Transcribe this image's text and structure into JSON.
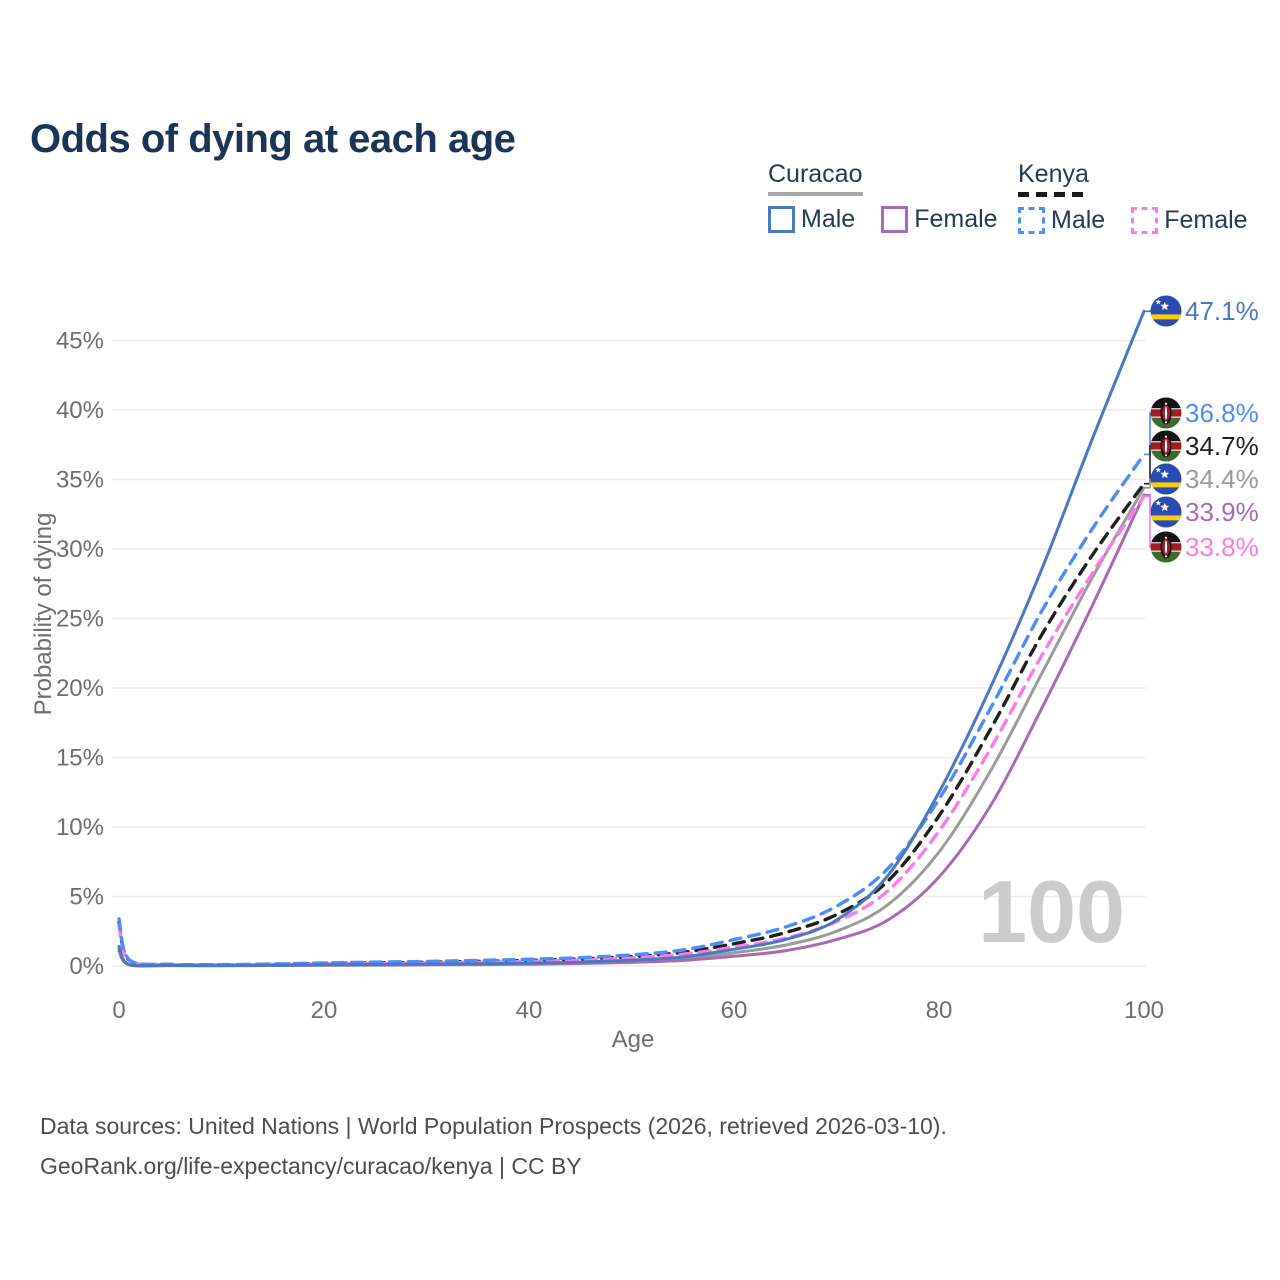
{
  "title": "Odds of dying at each age",
  "legend": {
    "groups": [
      {
        "label": "Curacao",
        "line_style": "solid",
        "underline_color": "#a8a8a8",
        "items": [
          {
            "label": "Male",
            "color": "#4b79c1",
            "style": "solid"
          },
          {
            "label": "Female",
            "color": "#a66bb4",
            "style": "solid"
          }
        ]
      },
      {
        "label": "Kenya",
        "line_style": "dashed",
        "underline_color": "#1a1a1a",
        "items": [
          {
            "label": "Male",
            "color": "#4d8df5",
            "style": "dashed"
          },
          {
            "label": "Female",
            "color": "#fb7ce8",
            "style": "dashed"
          }
        ]
      }
    ]
  },
  "chart_data": {
    "type": "line",
    "title": "Odds of dying at each age",
    "xlabel": "Age",
    "ylabel": "Probability of dying",
    "x_ticks": [
      0,
      20,
      40,
      60,
      80,
      100
    ],
    "y_ticks_percent": [
      0,
      5,
      10,
      15,
      20,
      25,
      30,
      35,
      40,
      45
    ],
    "xlim": [
      0,
      100
    ],
    "ylim_percent": [
      0,
      47.5
    ],
    "grid": "horizontal",
    "legend_position": "top-right",
    "watermark": "100",
    "ages": [
      0,
      1,
      5,
      10,
      15,
      20,
      25,
      30,
      35,
      40,
      45,
      50,
      55,
      60,
      65,
      70,
      75,
      80,
      85,
      90,
      95,
      100
    ],
    "series": [
      {
        "name": "Curacao Male",
        "country": "Curacao",
        "sex": "Male",
        "style": "solid",
        "color": "#4b79c1",
        "flag": "curacao",
        "end_label": "47.1%",
        "values": [
          1.4,
          0.1,
          0.04,
          0.03,
          0.05,
          0.09,
          0.11,
          0.13,
          0.16,
          0.21,
          0.28,
          0.42,
          0.65,
          1.2,
          1.9,
          3.3,
          6.5,
          12.5,
          20.0,
          28.5,
          38.0,
          47.1
        ]
      },
      {
        "name": "Kenya Male",
        "country": "Kenya",
        "sex": "Male",
        "style": "dashed",
        "color": "#4d8df5",
        "flag": "kenya",
        "end_label": "36.8%",
        "values": [
          3.4,
          0.45,
          0.12,
          0.1,
          0.14,
          0.22,
          0.28,
          0.33,
          0.4,
          0.48,
          0.6,
          0.8,
          1.15,
          1.9,
          2.8,
          4.3,
          7.0,
          12.0,
          18.5,
          25.5,
          31.5,
          36.8
        ]
      },
      {
        "name": "Kenya",
        "country": "Kenya",
        "sex": "Both",
        "style": "dashed",
        "color": "#1f1f1f",
        "flag": "kenya",
        "end_label": "34.7%",
        "values": [
          3.15,
          0.42,
          0.11,
          0.09,
          0.12,
          0.18,
          0.22,
          0.27,
          0.33,
          0.4,
          0.51,
          0.68,
          0.98,
          1.6,
          2.4,
          3.7,
          6.1,
          10.8,
          17.0,
          23.8,
          29.6,
          34.7
        ]
      },
      {
        "name": "Curacao",
        "country": "Curacao",
        "sex": "Both",
        "style": "solid",
        "color": "#9b9b9b",
        "flag": "curacao",
        "end_label": "34.4%",
        "values": [
          1.25,
          0.09,
          0.035,
          0.028,
          0.04,
          0.07,
          0.085,
          0.1,
          0.13,
          0.17,
          0.23,
          0.34,
          0.52,
          0.95,
          1.5,
          2.5,
          4.4,
          8.2,
          14.0,
          21.0,
          28.0,
          34.4
        ]
      },
      {
        "name": "Curacao Female",
        "country": "Curacao",
        "sex": "Female",
        "style": "solid",
        "color": "#a66bb4",
        "flag": "curacao",
        "end_label": "33.9%",
        "values": [
          1.1,
          0.08,
          0.03,
          0.025,
          0.035,
          0.05,
          0.06,
          0.08,
          0.1,
          0.13,
          0.18,
          0.26,
          0.4,
          0.7,
          1.1,
          1.9,
          3.3,
          6.4,
          11.5,
          18.5,
          26.0,
          33.9
        ]
      },
      {
        "name": "Kenya Female",
        "country": "Kenya",
        "sex": "Female",
        "style": "dashed",
        "color": "#fb7ce8",
        "flag": "kenya",
        "end_label": "33.8%",
        "values": [
          2.9,
          0.38,
          0.1,
          0.08,
          0.1,
          0.14,
          0.17,
          0.21,
          0.26,
          0.33,
          0.43,
          0.58,
          0.85,
          1.35,
          2.0,
          3.2,
          5.4,
          9.7,
          15.6,
          22.3,
          28.3,
          33.8
        ]
      }
    ]
  },
  "colors": {
    "title": "#1c3557",
    "axis_text": "#6e6e6e",
    "gridline": "#ececec",
    "watermark": "#cbcbcb",
    "footer_text": "#4d4d4d",
    "flag_curacao": {
      "field": "#2b4bb3",
      "stripe": "#f7ce0c",
      "stars": "#ffffff"
    },
    "flag_kenya": {
      "black": "#141414",
      "red": "#9e1f28",
      "green": "#3d6b2e",
      "white": "#ffffff"
    }
  },
  "footer": {
    "line1": "Data sources: United Nations | World Population Prospects (2026, retrieved 2026-03-10).",
    "line2": "GeoRank.org/life-expectancy/curacao/kenya | CC BY"
  }
}
